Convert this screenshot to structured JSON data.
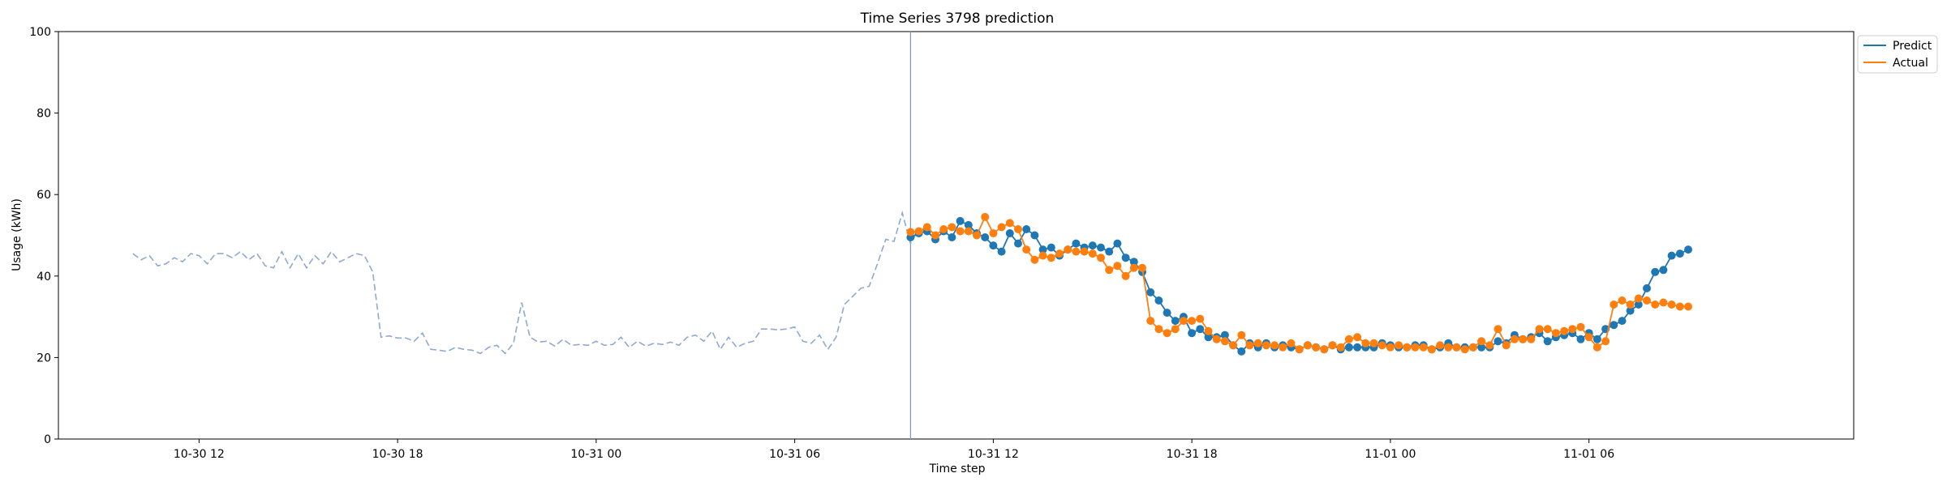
{
  "chart_data": {
    "type": "line",
    "title": "Time Series 3798 prediction",
    "xlabel": "Time step",
    "ylabel": "Usage (kWh)",
    "ylim": [
      0,
      100
    ],
    "xlim": [
      "2024-10-30 07:45",
      "2024-11-01 14:00"
    ],
    "yticks": [
      0,
      20,
      40,
      60,
      80,
      100
    ],
    "xticks": [
      {
        "t": "2024-10-30 12:00",
        "label": "10-30 12"
      },
      {
        "t": "2024-10-30 18:00",
        "label": "10-30 18"
      },
      {
        "t": "2024-10-31 00:00",
        "label": "10-31 00"
      },
      {
        "t": "2024-10-31 06:00",
        "label": "10-31 06"
      },
      {
        "t": "2024-10-31 12:00",
        "label": "10-31 12"
      },
      {
        "t": "2024-10-31 18:00",
        "label": "10-31 18"
      },
      {
        "t": "2024-11-01 00:00",
        "label": "11-01 00"
      },
      {
        "t": "2024-11-01 06:00",
        "label": "11-01 06"
      }
    ],
    "grid": false,
    "legend_position": "upper-right-outside",
    "forecast_start": "2024-10-31 09:30",
    "history": {
      "start": "2024-10-30 10:00",
      "interval_minutes": 15,
      "color": "#8fa9cf",
      "values": [
        45.5,
        44,
        45,
        42.5,
        43,
        44.5,
        43.5,
        45.5,
        45,
        43,
        45.5,
        45.5,
        44.5,
        46,
        44,
        45.5,
        42.5,
        42,
        46,
        42,
        45.5,
        42,
        45,
        43,
        46,
        43.5,
        44.5,
        45.5,
        45,
        41,
        25,
        25.3,
        24.8,
        24.8,
        24,
        26,
        22,
        21.8,
        21.5,
        22.5,
        22,
        21.8,
        21,
        22.5,
        23,
        21,
        23.5,
        33.5,
        25,
        23.8,
        24,
        22.8,
        24.5,
        23,
        23.2,
        23,
        24,
        23,
        23.2,
        25,
        22.5,
        24,
        22.8,
        23.5,
        23.2,
        23.8,
        23,
        25,
        25.5,
        24,
        26.5,
        22,
        25,
        22.5,
        23.5,
        24,
        27,
        27,
        26.8,
        27,
        27.5,
        24,
        23.5,
        25.5,
        22,
        25,
        33,
        35,
        37,
        37.5,
        43,
        49,
        48.5,
        55.5,
        48,
        51.5,
        50.8
      ]
    },
    "series": [
      {
        "name": "Predict",
        "color": "#1f77b4",
        "start": "2024-10-31 09:30",
        "interval_minutes": 15,
        "values": [
          49.5,
          50.5,
          51,
          49,
          51,
          49.5,
          53.5,
          52.5,
          50.5,
          49.5,
          47.5,
          46,
          50.5,
          48,
          51.5,
          50,
          46.5,
          47,
          45,
          46.5,
          48,
          47,
          47.5,
          47,
          46,
          48,
          44.5,
          43.5,
          41,
          36,
          34,
          31,
          29,
          30,
          26,
          27,
          25,
          25,
          25.5,
          23,
          21.5,
          23.5,
          22.5,
          23.5,
          22.5,
          23,
          22.5,
          22,
          23,
          22.5,
          22,
          23,
          22,
          22.5,
          22.5,
          22.5,
          22.5,
          23.5,
          23,
          22.5,
          22.5,
          23,
          23,
          22,
          22.5,
          23.5,
          22.5,
          22.5,
          22.5,
          22.5,
          22.5,
          24,
          23.5,
          25.5,
          24.5,
          25,
          26,
          24,
          25,
          25.5,
          26,
          24.5,
          26,
          24.5,
          27,
          28,
          29,
          31.5,
          33,
          37,
          41,
          41.5,
          45,
          45.5,
          46.5
        ]
      },
      {
        "name": "Actual",
        "color": "#ff7f0e",
        "start": "2024-10-31 09:30",
        "interval_minutes": 15,
        "values": [
          50.8,
          51,
          52,
          50,
          51.5,
          52,
          51,
          51,
          50,
          54.5,
          50.5,
          52,
          53,
          51.5,
          46.5,
          44,
          45,
          44.5,
          45.5,
          46.5,
          46,
          46,
          45.5,
          44.5,
          41.5,
          42.5,
          40,
          42,
          42,
          29,
          27,
          26,
          27,
          29,
          29,
          29.5,
          26.5,
          24.5,
          24,
          23,
          25.5,
          23,
          23.5,
          23,
          23,
          22.5,
          23.5,
          22,
          23,
          22.5,
          22,
          23,
          22.5,
          24.5,
          25,
          23.5,
          23.5,
          23,
          22.5,
          23,
          22.5,
          22.5,
          22.5,
          22,
          23,
          22.5,
          22.5,
          22,
          22.5,
          24,
          23,
          27,
          23,
          24.5,
          24.5,
          24.5,
          27,
          27,
          26,
          26.5,
          27,
          27.5,
          25,
          22.5,
          24,
          33,
          34,
          33,
          34.5,
          34,
          33,
          33.5,
          33,
          32.5,
          32.5
        ]
      }
    ]
  }
}
